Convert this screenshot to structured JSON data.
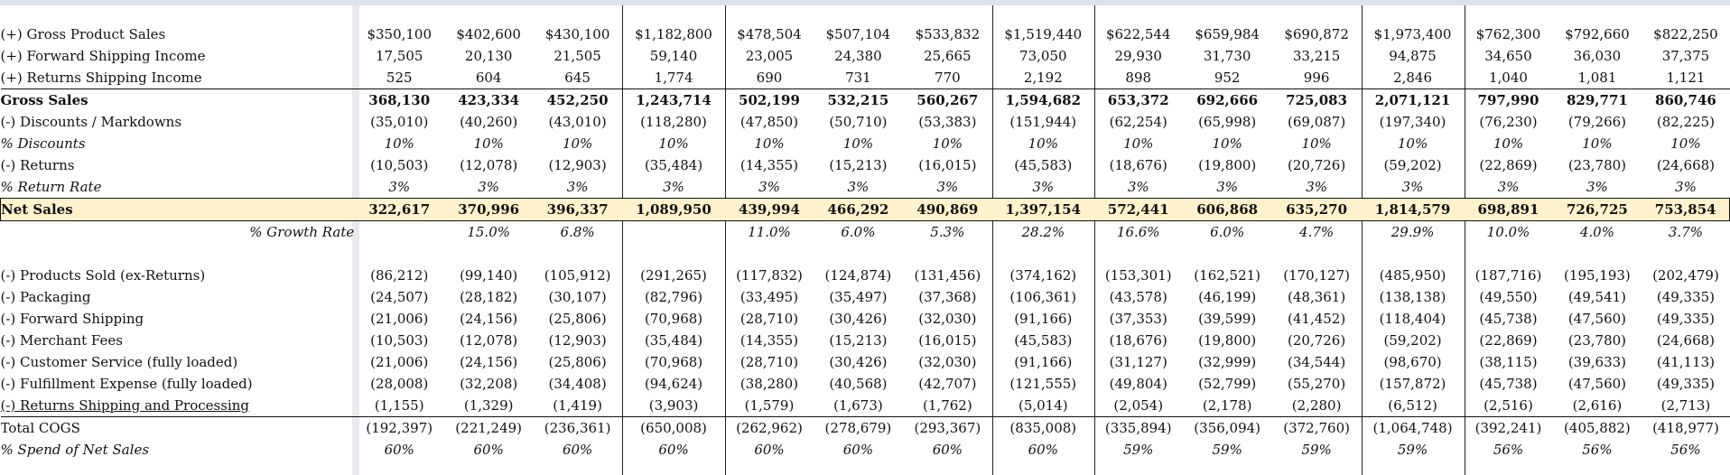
{
  "rows": [
    {
      "label": "(+) Gross Product Sales",
      "values": [
        "$350,100",
        "$402,600",
        "$430,100",
        "$1,182,800",
        "$478,504",
        "$507,104",
        "$533,832",
        "$1,519,440",
        "$622,544",
        "$659,984",
        "$690,872",
        "$1,973,400",
        "$762,300",
        "$792,660",
        "$822,250"
      ]
    },
    {
      "label": "(+) Forward Shipping Income",
      "values": [
        "17,505",
        "20,130",
        "21,505",
        "59,140",
        "23,005",
        "24,380",
        "25,665",
        "73,050",
        "29,930",
        "31,730",
        "33,215",
        "94,875",
        "34,650",
        "36,030",
        "37,375"
      ]
    },
    {
      "label": "(+) Returns Shipping Income",
      "values": [
        "525",
        "604",
        "645",
        "1,774",
        "690",
        "731",
        "770",
        "2,192",
        "898",
        "952",
        "996",
        "2,846",
        "1,040",
        "1,081",
        "1,121"
      ]
    },
    {
      "label": "Gross Sales",
      "values": [
        "368,130",
        "423,334",
        "452,250",
        "1,243,714",
        "502,199",
        "532,215",
        "560,267",
        "1,594,682",
        "653,372",
        "692,666",
        "725,083",
        "2,071,121",
        "797,990",
        "829,771",
        "860,746"
      ]
    },
    {
      "label": "(-) Discounts / Markdowns",
      "values": [
        "(35,010)",
        "(40,260)",
        "(43,010)",
        "(118,280)",
        "(47,850)",
        "(50,710)",
        "(53,383)",
        "(151,944)",
        "(62,254)",
        "(65,998)",
        "(69,087)",
        "(197,340)",
        "(76,230)",
        "(79,266)",
        "(82,225)"
      ]
    },
    {
      "label": "% Discounts",
      "values": [
        "10%",
        "10%",
        "10%",
        "10%",
        "10%",
        "10%",
        "10%",
        "10%",
        "10%",
        "10%",
        "10%",
        "10%",
        "10%",
        "10%",
        "10%"
      ]
    },
    {
      "label": "(-) Returns",
      "values": [
        "(10,503)",
        "(12,078)",
        "(12,903)",
        "(35,484)",
        "(14,355)",
        "(15,213)",
        "(16,015)",
        "(45,583)",
        "(18,676)",
        "(19,800)",
        "(20,726)",
        "(59,202)",
        "(22,869)",
        "(23,780)",
        "(24,668)"
      ]
    },
    {
      "label": "% Return Rate",
      "values": [
        "3%",
        "3%",
        "3%",
        "3%",
        "3%",
        "3%",
        "3%",
        "3%",
        "3%",
        "3%",
        "3%",
        "3%",
        "3%",
        "3%",
        "3%"
      ]
    },
    {
      "label": "Net Sales",
      "values": [
        "322,617",
        "370,996",
        "396,337",
        "1,089,950",
        "439,994",
        "466,292",
        "490,869",
        "1,397,154",
        "572,441",
        "606,868",
        "635,270",
        "1,814,579",
        "698,891",
        "726,725",
        "753,854"
      ]
    },
    {
      "label": "% Growth Rate",
      "values": [
        "",
        "15.0%",
        "6.8%",
        "",
        "11.0%",
        "6.0%",
        "5.3%",
        "28.2%",
        "16.6%",
        "6.0%",
        "4.7%",
        "29.9%",
        "10.0%",
        "4.0%",
        "3.7%"
      ]
    },
    {
      "label": "",
      "values": [
        "",
        "",
        "",
        "",
        "",
        "",
        "",
        "",
        "",
        "",
        "",
        "",
        "",
        "",
        ""
      ]
    },
    {
      "label": "(-) Products Sold (ex-Returns)",
      "values": [
        "(86,212)",
        "(99,140)",
        "(105,912)",
        "(291,265)",
        "(117,832)",
        "(124,874)",
        "(131,456)",
        "(374,162)",
        "(153,301)",
        "(162,521)",
        "(170,127)",
        "(485,950)",
        "(187,716)",
        "(195,193)",
        "(202,479)"
      ]
    },
    {
      "label": "(-) Packaging",
      "values": [
        "(24,507)",
        "(28,182)",
        "(30,107)",
        "(82,796)",
        "(33,495)",
        "(35,497)",
        "(37,368)",
        "(106,361)",
        "(43,578)",
        "(46,199)",
        "(48,361)",
        "(138,138)",
        "(49,550)",
        "(49,541)",
        "(49,335)"
      ]
    },
    {
      "label": "(-) Forward Shipping",
      "values": [
        "(21,006)",
        "(24,156)",
        "(25,806)",
        "(70,968)",
        "(28,710)",
        "(30,426)",
        "(32,030)",
        "(91,166)",
        "(37,353)",
        "(39,599)",
        "(41,452)",
        "(118,404)",
        "(45,738)",
        "(47,560)",
        "(49,335)"
      ]
    },
    {
      "label": "(-) Merchant Fees",
      "values": [
        "(10,503)",
        "(12,078)",
        "(12,903)",
        "(35,484)",
        "(14,355)",
        "(15,213)",
        "(16,015)",
        "(45,583)",
        "(18,676)",
        "(19,800)",
        "(20,726)",
        "(59,202)",
        "(22,869)",
        "(23,780)",
        "(24,668)"
      ]
    },
    {
      "label": "(-) Customer Service (fully loaded)",
      "values": [
        "(21,006)",
        "(24,156)",
        "(25,806)",
        "(70,968)",
        "(28,710)",
        "(30,426)",
        "(32,030)",
        "(91,166)",
        "(31,127)",
        "(32,999)",
        "(34,544)",
        "(98,670)",
        "(38,115)",
        "(39,633)",
        "(41,113)"
      ]
    },
    {
      "label": "(-) Fulfillment Expense (fully loaded)",
      "values": [
        "(28,008)",
        "(32,208)",
        "(34,408)",
        "(94,624)",
        "(38,280)",
        "(40,568)",
        "(42,707)",
        "(121,555)",
        "(49,804)",
        "(52,799)",
        "(55,270)",
        "(157,872)",
        "(45,738)",
        "(47,560)",
        "(49,335)"
      ]
    },
    {
      "label": "(-) Returns Shipping and Processing",
      "values": [
        "(1,155)",
        "(1,329)",
        "(1,419)",
        "(3,903)",
        "(1,579)",
        "(1,673)",
        "(1,762)",
        "(5,014)",
        "(2,054)",
        "(2,178)",
        "(2,280)",
        "(6,512)",
        "(2,516)",
        "(2,616)",
        "(2,713)"
      ]
    },
    {
      "label": "Total COGS",
      "values": [
        "(192,397)",
        "(221,249)",
        "(236,361)",
        "(650,008)",
        "(262,962)",
        "(278,679)",
        "(293,367)",
        "(835,008)",
        "(335,894)",
        "(356,094)",
        "(372,760)",
        "(1,064,748)",
        "(392,241)",
        "(405,882)",
        "(418,977)"
      ]
    },
    {
      "label": "% Spend of Net Sales",
      "values": [
        "60%",
        "60%",
        "60%",
        "60%",
        "60%",
        "60%",
        "60%",
        "60%",
        "59%",
        "59%",
        "59%",
        "59%",
        "56%",
        "56%",
        "56%"
      ]
    }
  ]
}
